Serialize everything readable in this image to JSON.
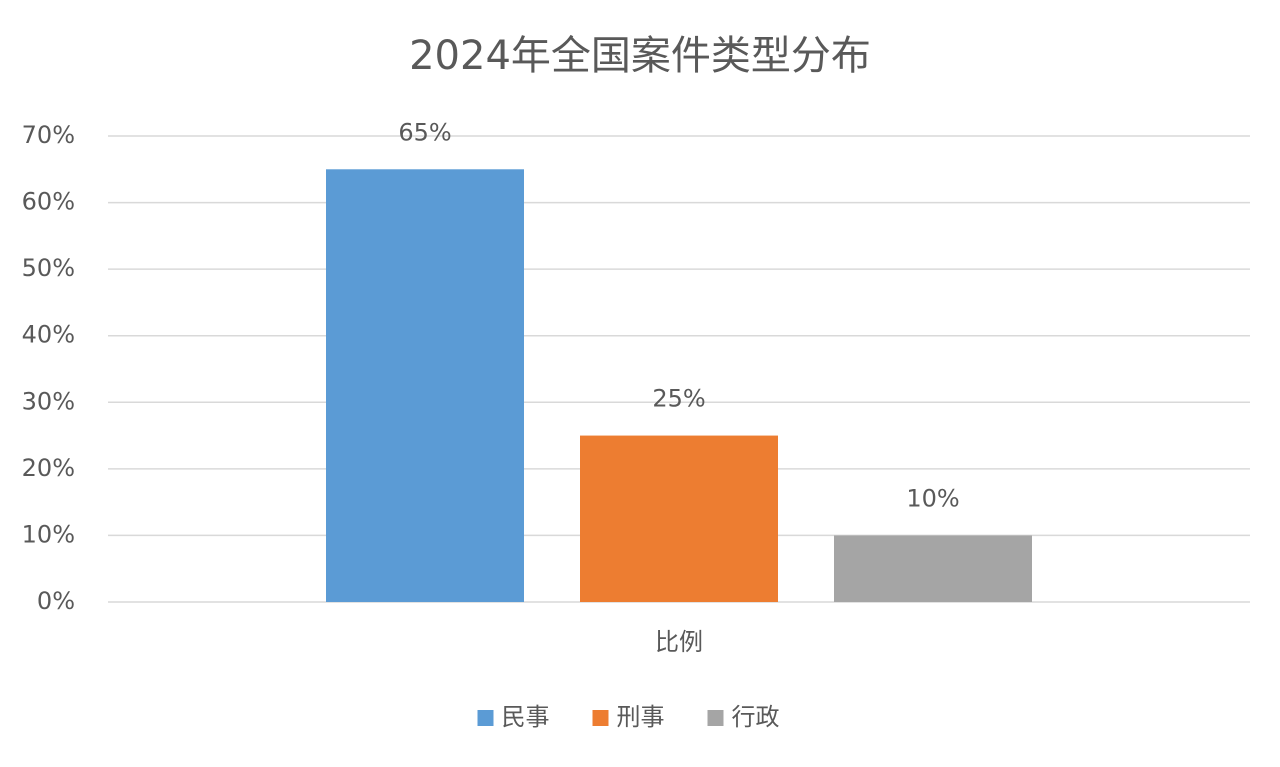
{
  "chart_data": {
    "type": "bar",
    "title": "2024年全国案件类型分布",
    "categories": [
      "比例"
    ],
    "series": [
      {
        "name": "民事",
        "color": "#5b9bd5",
        "values": [
          65
        ],
        "value_labels": [
          "65%"
        ]
      },
      {
        "name": "刑事",
        "color": "#ed7d31",
        "values": [
          25
        ],
        "value_labels": [
          "25%"
        ]
      },
      {
        "name": "行政",
        "color": "#a5a5a5",
        "values": [
          10
        ],
        "value_labels": [
          "10%"
        ]
      }
    ],
    "ylim": [
      0,
      70
    ],
    "yticks": [
      {
        "value": 0,
        "label": "0%"
      },
      {
        "value": 10,
        "label": "10%"
      },
      {
        "value": 20,
        "label": "20%"
      },
      {
        "value": 30,
        "label": "30%"
      },
      {
        "value": 40,
        "label": "40%"
      },
      {
        "value": 50,
        "label": "50%"
      },
      {
        "value": 60,
        "label": "60%"
      },
      {
        "value": 70,
        "label": "70%"
      }
    ],
    "grid": true,
    "legend": "bottom"
  }
}
